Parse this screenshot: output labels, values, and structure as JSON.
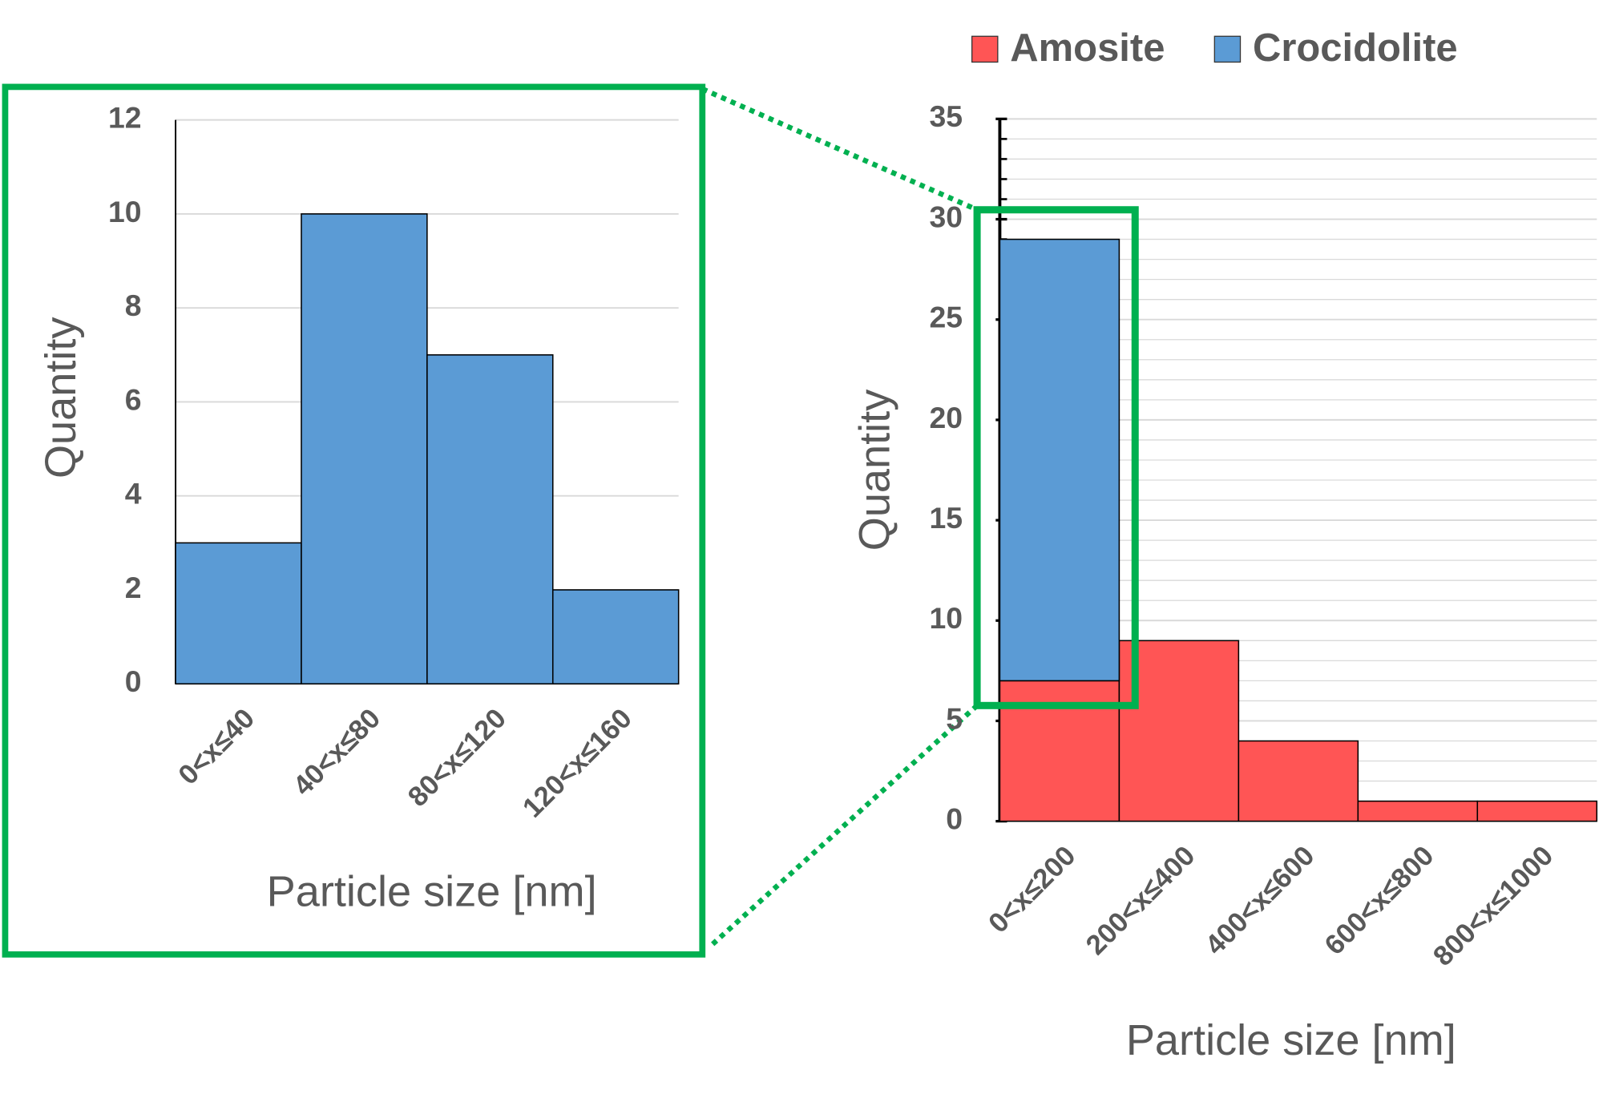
{
  "chart_data": [
    {
      "type": "bar",
      "y_label": "Quantity",
      "x_label": "Particle size [nm]",
      "categories": [
        "0<x≤40",
        "40<x≤80",
        "80<x≤120",
        "120<x≤160"
      ],
      "values": [
        3,
        10,
        7,
        2
      ],
      "color": "#5b9bd5",
      "ylim": [
        0,
        12
      ],
      "yticks": [
        0,
        2,
        4,
        6,
        8,
        10,
        12
      ],
      "grid": true
    },
    {
      "type": "stacked_bar",
      "y_label": "Quantity",
      "x_label": "Particle size [nm]",
      "categories": [
        "0<x≤200",
        "200<x≤400",
        "400<x≤600",
        "600<x≤800",
        "800<x≤1000"
      ],
      "series": [
        {
          "name": "Amosite",
          "color": "#ff5555",
          "values": [
            7,
            9,
            4,
            1,
            1
          ]
        },
        {
          "name": "Crocidolite",
          "color": "#5b9bd5",
          "values": [
            22,
            0,
            0,
            0,
            0
          ]
        }
      ],
      "ylim": [
        0,
        35
      ],
      "yticks": [
        0,
        5,
        10,
        15,
        20,
        25,
        30,
        35
      ],
      "grid": true,
      "minor_grid_step": 1,
      "legend": "top"
    }
  ]
}
